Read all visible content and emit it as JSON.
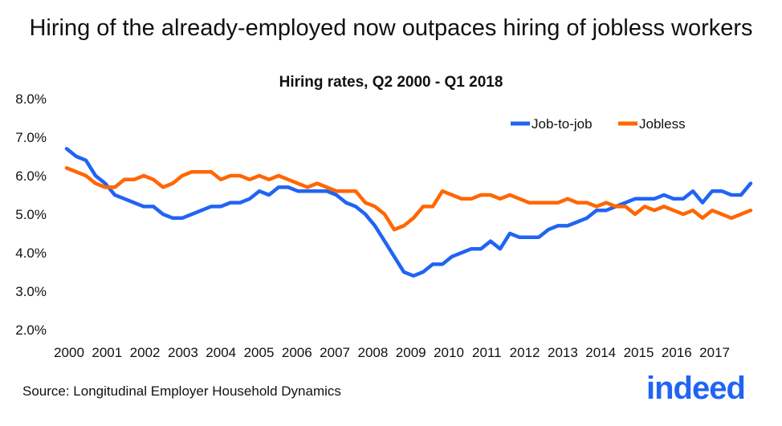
{
  "title": "Hiring of the already-employed now outpaces hiring of jobless workers",
  "source": "Source: Longitudinal Employer Household Dynamics",
  "logo": "indeed",
  "chart_data": {
    "type": "line",
    "title": "Hiring of the already-employed now outpaces hiring of jobless workers",
    "subtitle": "Hiring rates, Q2 2000 - Q1 2018",
    "ylim": [
      2.0,
      8.0
    ],
    "yticks": [
      "2.0%",
      "3.0%",
      "4.0%",
      "5.0%",
      "6.0%",
      "7.0%",
      "8.0%"
    ],
    "xticks": [
      "2000",
      "2001",
      "2002",
      "2003",
      "2004",
      "2005",
      "2006",
      "2007",
      "2008",
      "2009",
      "2010",
      "2011",
      "2012",
      "2013",
      "2014",
      "2015",
      "2016",
      "2017"
    ],
    "x_start": "Q2 2000",
    "x_end": "Q1 2018",
    "legend_position": "top-right",
    "grid": false,
    "series": [
      {
        "name": "Job-to-job",
        "color": "#2164f3",
        "values": [
          6.7,
          6.5,
          6.4,
          6.0,
          5.8,
          5.5,
          5.4,
          5.3,
          5.2,
          5.2,
          5.0,
          4.9,
          4.9,
          5.0,
          5.1,
          5.2,
          5.2,
          5.3,
          5.3,
          5.4,
          5.6,
          5.5,
          5.7,
          5.7,
          5.6,
          5.6,
          5.6,
          5.6,
          5.5,
          5.3,
          5.2,
          5.0,
          4.7,
          4.3,
          3.9,
          3.5,
          3.4,
          3.5,
          3.7,
          3.7,
          3.9,
          4.0,
          4.1,
          4.1,
          4.3,
          4.1,
          4.5,
          4.4,
          4.4,
          4.4,
          4.6,
          4.7,
          4.7,
          4.8,
          4.9,
          5.1,
          5.1,
          5.2,
          5.3,
          5.4,
          5.4,
          5.4,
          5.5,
          5.4,
          5.4,
          5.6,
          5.3,
          5.6,
          5.6,
          5.5,
          5.5,
          5.8
        ]
      },
      {
        "name": "Jobless",
        "color": "#ff6600",
        "values": [
          6.2,
          6.1,
          6.0,
          5.8,
          5.7,
          5.7,
          5.9,
          5.9,
          6.0,
          5.9,
          5.7,
          5.8,
          6.0,
          6.1,
          6.1,
          6.1,
          5.9,
          6.0,
          6.0,
          5.9,
          6.0,
          5.9,
          6.0,
          5.9,
          5.8,
          5.7,
          5.8,
          5.7,
          5.6,
          5.6,
          5.6,
          5.3,
          5.2,
          5.0,
          4.6,
          4.7,
          4.9,
          5.2,
          5.2,
          5.6,
          5.5,
          5.4,
          5.4,
          5.5,
          5.5,
          5.4,
          5.5,
          5.4,
          5.3,
          5.3,
          5.3,
          5.3,
          5.4,
          5.3,
          5.3,
          5.2,
          5.3,
          5.2,
          5.2,
          5.0,
          5.2,
          5.1,
          5.2,
          5.1,
          5.0,
          5.1,
          4.9,
          5.1,
          5.0,
          4.9,
          5.0,
          5.1
        ]
      }
    ]
  }
}
